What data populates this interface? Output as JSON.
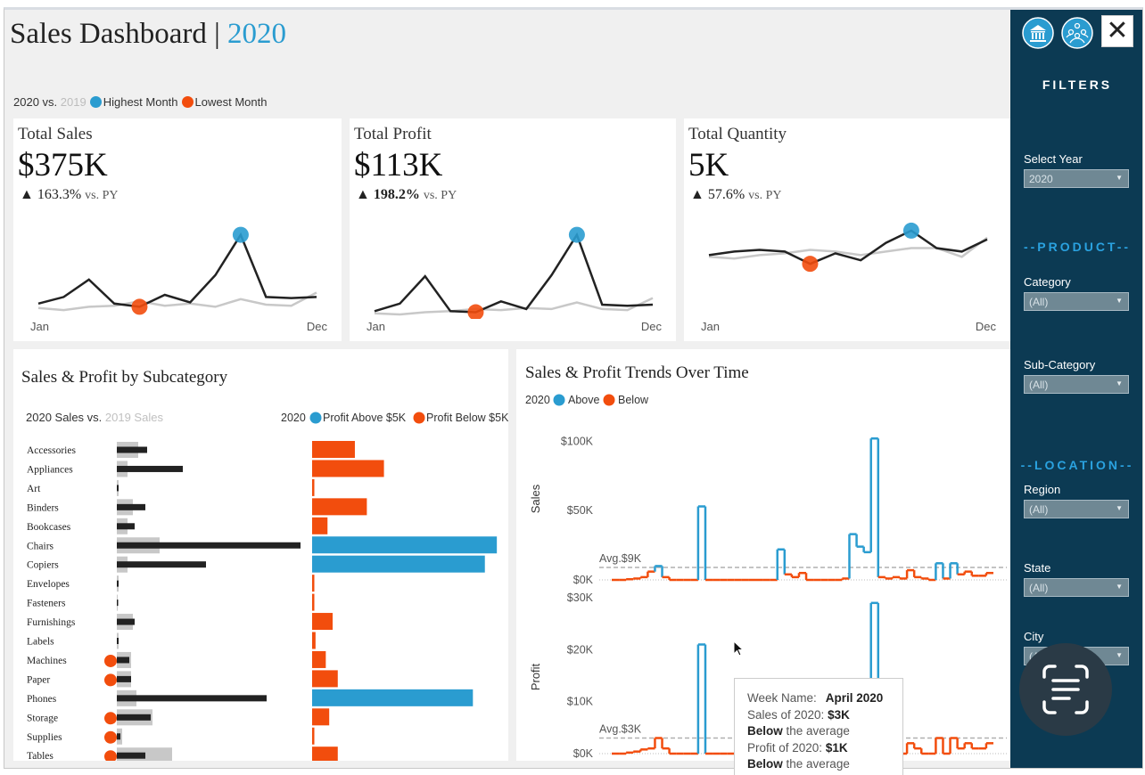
{
  "header": {
    "title": "Sales Dashboard | ",
    "year": "2020"
  },
  "legend": {
    "prefix": "2020 vs.",
    "prior": "2019",
    "highest": "Highest Month",
    "lowest": "Lowest Month"
  },
  "colors": {
    "accent": "#2a9cd0",
    "below": "#f24d0d",
    "current_line": "#222222",
    "prior_line": "#c8c8c8",
    "sidebar": "#0c3a53"
  },
  "kpis": [
    {
      "title": "Total Sales",
      "value": "$375K",
      "change": "▲ 163.3%",
      "change_bold": false,
      "vs": "vs. PY",
      "start": "Jan",
      "end": "Dec",
      "current": [
        1.0,
        1.6,
        3.2,
        1.0,
        0.7,
        1.8,
        1.1,
        3.6,
        7.3,
        1.6,
        1.5,
        1.6
      ],
      "prior": [
        0.6,
        0.4,
        0.7,
        0.8,
        1.2,
        0.8,
        1.0,
        0.7,
        1.4,
        0.9,
        0.8,
        2.0
      ],
      "max_index": 8,
      "min_index": 4,
      "ymax": 8
    },
    {
      "title": "Total Profit",
      "value": "$113K",
      "change": "▲ 198.2%",
      "change_bold": true,
      "vs": "vs. PY",
      "start": "Jan",
      "end": "Dec",
      "current": [
        0.3,
        1.0,
        3.5,
        0.3,
        0.2,
        1.2,
        0.5,
        3.6,
        7.3,
        0.9,
        0.8,
        0.9
      ],
      "prior": [
        0.1,
        0.0,
        0.2,
        0.3,
        0.5,
        0.4,
        0.6,
        0.5,
        1.1,
        0.5,
        0.4,
        1.5
      ],
      "max_index": 8,
      "min_index": 4,
      "ymax": 8
    },
    {
      "title": "Total Quantity",
      "value": "5K",
      "change": "▲ 57.6%",
      "change_bold": false,
      "vs": "vs. PY",
      "start": "Jan",
      "end": "Dec",
      "current": [
        3.4,
        3.6,
        3.7,
        3.6,
        2.9,
        3.5,
        3.1,
        4.1,
        4.8,
        3.8,
        3.6,
        4.3
      ],
      "prior": [
        3.3,
        3.2,
        3.4,
        3.5,
        3.7,
        3.6,
        3.4,
        3.6,
        3.8,
        3.8,
        3.3,
        4.4
      ],
      "max_index": 8,
      "min_index": 4,
      "ymax": 5
    }
  ],
  "chart_data": [
    {
      "type": "bar",
      "title": "Sales & Profit by Subcategory",
      "legend_left": {
        "current": "2020 Sales vs.",
        "prior": "2019 Sales"
      },
      "legend_right": {
        "year": "2020",
        "above": "Profit  Above $5K",
        "below": "Profit Below $5K"
      },
      "categories": [
        "Accessories",
        "Appliances",
        "Art",
        "Binders",
        "Bookcases",
        "Chairs",
        "Copiers",
        "Envelopes",
        "Fasteners",
        "Furnishings",
        "Labels",
        "Machines",
        "Paper",
        "Phones",
        "Storage",
        "Supplies",
        "Tables"
      ],
      "series": [
        {
          "name": "2020 Sales",
          "values": [
            17,
            37,
            1,
            16,
            10,
            103,
            50,
            1,
            0.5,
            10,
            1,
            7,
            8,
            84,
            19,
            2,
            16
          ]
        },
        {
          "name": "2019 Sales",
          "values": [
            12,
            6,
            1,
            9,
            6,
            24,
            6,
            1,
            0.5,
            9,
            1,
            8,
            8,
            11,
            20,
            3,
            31
          ]
        },
        {
          "name": "Profit",
          "values": [
            2.5,
            4.2,
            0.1,
            3.2,
            0.9,
            10.8,
            10.1,
            0.1,
            0.05,
            1.2,
            0.2,
            0.8,
            1.5,
            9.4,
            1.0,
            0.1,
            1.5
          ]
        }
      ],
      "lowest_flags": [
        false,
        false,
        false,
        false,
        false,
        false,
        false,
        false,
        false,
        false,
        false,
        true,
        true,
        false,
        true,
        true,
        true
      ],
      "threshold": 5,
      "sales_max": 105,
      "profit_max": 11
    },
    {
      "type": "line",
      "title": "Sales & Profit Trends Over Time",
      "legend": {
        "year": "2020",
        "above": "Above",
        "below": "Below"
      },
      "sales": {
        "ylabel": "Sales",
        "ylim": [
          0,
          106
        ],
        "ticks": [
          [
            "$100K",
            100
          ],
          [
            "$50K",
            50
          ],
          [
            "$0K",
            0
          ]
        ],
        "avg": 9,
        "avg_label": "Avg.$9K",
        "values": [
          0,
          0,
          0.5,
          1,
          2,
          6,
          10,
          2,
          0,
          0,
          0,
          0,
          53,
          0,
          0,
          0,
          0,
          0,
          0,
          0,
          0,
          0,
          0,
          22,
          4,
          2,
          5,
          0,
          0,
          0,
          0,
          0,
          1,
          33,
          24,
          20,
          102,
          2,
          1,
          2,
          1,
          7,
          2,
          1,
          0,
          12,
          1,
          12,
          4,
          6,
          3,
          3,
          5
        ]
      },
      "profit": {
        "ylabel": "Profit",
        "ylim": [
          0,
          30
        ],
        "ticks": [
          [
            "$30K",
            30
          ],
          [
            "$20K",
            20
          ],
          [
            "$10K",
            10
          ],
          [
            "$0K",
            0
          ]
        ],
        "avg": 3,
        "avg_label": "Avg.$3K",
        "values": [
          0,
          0,
          0.2,
          0.4,
          0.8,
          1,
          3,
          1,
          0,
          0,
          0,
          0,
          21,
          0,
          0,
          0,
          0,
          0,
          0,
          0,
          0,
          0,
          0,
          1,
          1,
          0,
          1,
          0,
          0,
          0,
          0,
          0,
          0,
          2,
          1,
          1,
          29,
          1,
          0,
          1,
          0,
          2,
          1,
          0,
          0,
          3,
          0,
          3,
          1,
          2,
          1,
          1,
          2
        ]
      }
    }
  ],
  "tooltip": {
    "week_label": "Week Name:",
    "week_value": "April 2020",
    "sales_label": "Sales of 2020:",
    "sales_value": "$3K",
    "sales_note_b": "Below",
    "sales_note": "the average",
    "profit_label": "Profit of 2020:",
    "profit_value": "$1K",
    "profit_note_b": "Below",
    "profit_note": "the average"
  },
  "sidebar": {
    "title": "FILTERS",
    "product_header": "--PRODUCT--",
    "location_header": "--LOCATION--",
    "filters": [
      {
        "label": "Select Year",
        "value": "2020"
      },
      {
        "label": "Category",
        "value": "(All)"
      },
      {
        "label": "Sub-Category",
        "value": "(All)"
      },
      {
        "label": "Region",
        "value": "(All)"
      },
      {
        "label": "State",
        "value": "(All)"
      },
      {
        "label": "City",
        "value": "(All)"
      }
    ],
    "icons": {
      "bank": "bank-icon",
      "people": "people-icon",
      "close": "close-icon",
      "scan": "scan-text-icon"
    }
  }
}
